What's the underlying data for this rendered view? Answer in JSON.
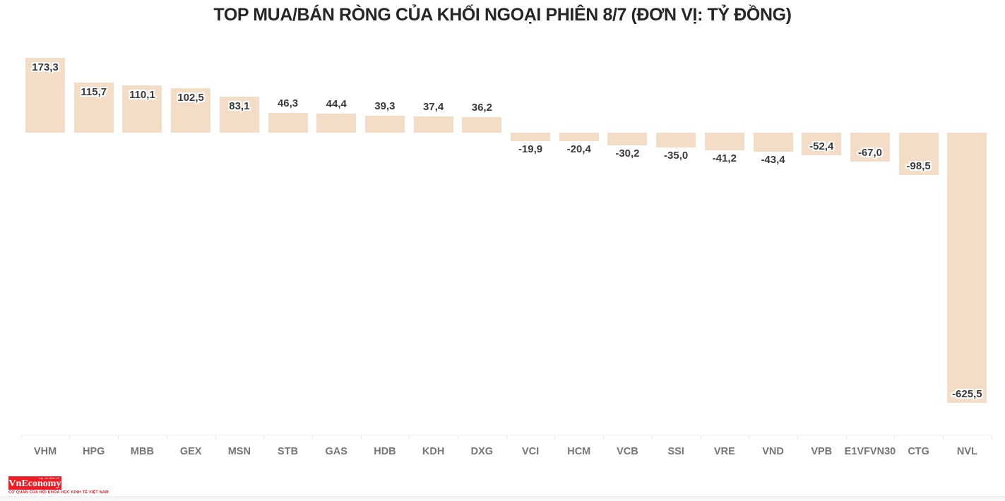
{
  "chart_data": {
    "type": "bar",
    "title": "TOP MUA/BÁN RÒNG CỦA KHỐI NGOẠI PHIÊN 8/7 (ĐƠN VỊ: TỶ ĐỒNG)",
    "categories": [
      "VHM",
      "HPG",
      "MBB",
      "GEX",
      "MSN",
      "STB",
      "GAS",
      "HDB",
      "KDH",
      "DXG",
      "VCI",
      "HCM",
      "VCB",
      "SSI",
      "VRE",
      "VND",
      "VPB",
      "E1VFVN30",
      "CTG",
      "NVL"
    ],
    "values": [
      173.3,
      115.7,
      110.1,
      102.5,
      83.1,
      46.3,
      44.4,
      39.3,
      37.4,
      36.2,
      -19.9,
      -20.4,
      -30.2,
      -35.0,
      -41.2,
      -43.4,
      -52.4,
      -67.0,
      -98.5,
      -625.5
    ],
    "value_labels": [
      "173,3",
      "115,7",
      "110,1",
      "102,5",
      "83,1",
      "46,3",
      "44,4",
      "39,3",
      "37,4",
      "36,2",
      "-19,9",
      "-20,4",
      "-30,2",
      "-35,0",
      "-41,2",
      "-43,4",
      "-52,4",
      "-67,0",
      "-98,5",
      "-625,5"
    ],
    "xlabel": "",
    "ylabel": "",
    "unit": "tỷ đồng",
    "ylim": [
      -650,
      200
    ],
    "grid": false,
    "legend": false,
    "bar_color": "#f3ddc6",
    "value_label_color": "#3a3a3a",
    "category_label_color": "#767676",
    "axis_color": "#ececec"
  },
  "footer": {
    "logo_text": "VnEconomy",
    "logo_top_text": "tạp chí điện tử",
    "logo_tagline": "CƠ QUAN CỦA HỘI KHOA HỌC KINH TẾ VIỆT NAM",
    "logo_color": "#ee1c25"
  }
}
